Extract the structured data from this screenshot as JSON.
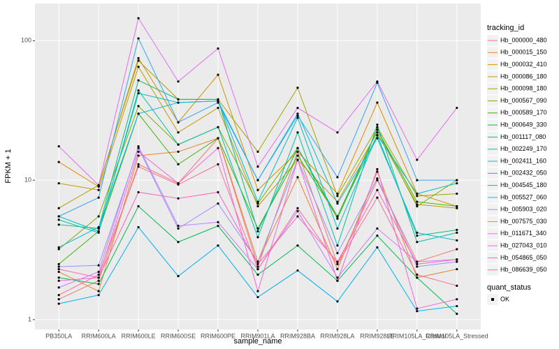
{
  "chart_data": {
    "type": "line",
    "x_label": "sample_name",
    "y_label": "FPKM + 1",
    "y_log": true,
    "grid": true,
    "legend_position": "right",
    "legend_title": "tracking_id",
    "point_legend_title": "quant_status",
    "point_legend_labels": [
      "OK"
    ],
    "point_color": "#000000",
    "ylim": [
      0.85,
      185
    ],
    "yticks": [
      1,
      10,
      100
    ],
    "categories": [
      "PB350LA",
      "RRIM600LA",
      "RRIM600LE",
      "RRIM600SE",
      "RRIM600PE",
      "RRIM901LA",
      "RRIM928BA",
      "RRIM928LA",
      "RRIM928LE",
      "RRIM105LA_Control",
      "RRIM105LA_Stressed"
    ],
    "series": [
      {
        "name": "Hb_000000_480",
        "color": "#F8766D",
        "values": [
          1.4,
          1.9,
          13,
          9.5,
          20,
          2.4,
          16,
          2.5,
          10,
          2.6,
          3.2
        ]
      },
      {
        "name": "Hb_000015_150",
        "color": "#EA8331",
        "values": [
          2.2,
          1.6,
          15,
          16,
          20,
          2.6,
          10.5,
          2.3,
          11.5,
          2.0,
          2.3
        ]
      },
      {
        "name": "Hb_000032_410",
        "color": "#D89000",
        "values": [
          13.5,
          9,
          75,
          26,
          57,
          8.5,
          16,
          8,
          36,
          8,
          6.5
        ]
      },
      {
        "name": "Hb_000086_180",
        "color": "#C09B00",
        "values": [
          9.5,
          8.5,
          65,
          22,
          33,
          6.5,
          14,
          7,
          22,
          6.7,
          6.3
        ]
      },
      {
        "name": "Hb_000098_180",
        "color": "#A3A500",
        "values": [
          6.3,
          9.2,
          72,
          38,
          38,
          16,
          46,
          7.7,
          24,
          7.7,
          8
        ]
      },
      {
        "name": "Hb_000567_090",
        "color": "#7CAE00",
        "values": [
          3.2,
          5.5,
          34,
          18,
          24,
          6.8,
          17,
          5.3,
          23,
          6.5,
          10
        ]
      },
      {
        "name": "Hb_000589_170",
        "color": "#39B600",
        "values": [
          2.5,
          4.3,
          30,
          13,
          20,
          4.5,
          15,
          5.5,
          23,
          7,
          6.5
        ]
      },
      {
        "name": "Hb_000649_330",
        "color": "#00BB4E",
        "values": [
          2.0,
          1.8,
          6.5,
          3.6,
          4.7,
          2.1,
          3.4,
          1.9,
          4.0,
          2.0,
          1.1
        ]
      },
      {
        "name": "Hb_001117_080",
        "color": "#00BF7D",
        "values": [
          4.8,
          4.5,
          52,
          38,
          38,
          4.3,
          17,
          5.5,
          21,
          4.0,
          4.4
        ]
      },
      {
        "name": "Hb_002249_170",
        "color": "#00C1A3",
        "values": [
          5.2,
          4.2,
          44,
          18,
          24,
          3.9,
          22,
          3.4,
          25,
          3.6,
          4.2
        ]
      },
      {
        "name": "Hb_002411_160",
        "color": "#00BFC4",
        "values": [
          5.5,
          4.3,
          42,
          36,
          37,
          7,
          28,
          4.5,
          21,
          8,
          9.5
        ]
      },
      {
        "name": "Hb_002432_050",
        "color": "#00BAE0",
        "values": [
          3.3,
          4.6,
          30,
          36,
          37,
          10,
          30,
          6.8,
          20,
          4.2,
          3.7
        ]
      },
      {
        "name": "Hb_004545_180",
        "color": "#00B0F6",
        "values": [
          1.3,
          1.5,
          4.6,
          2.05,
          3.4,
          1.45,
          2.25,
          1.35,
          3.3,
          1.15,
          1.25
        ]
      },
      {
        "name": "Hb_005527_060",
        "color": "#35A2FF",
        "values": [
          5.5,
          7.5,
          104,
          26,
          36,
          10,
          29,
          10.5,
          50,
          10,
          10
        ]
      },
      {
        "name": "Hb_005903_020",
        "color": "#9590FF",
        "values": [
          2.4,
          2.45,
          17,
          4.5,
          6.8,
          2.6,
          14,
          3.0,
          10.3,
          2.4,
          2.6
        ]
      },
      {
        "name": "Hb_007575_030",
        "color": "#C77CFF",
        "values": [
          1.7,
          2.2,
          17.5,
          4.7,
          5.0,
          2.3,
          6.0,
          2.0,
          4.5,
          2.6,
          2.7
        ]
      },
      {
        "name": "Hb_011671_340",
        "color": "#E76BF3",
        "values": [
          17.5,
          9.2,
          145,
          51,
          88,
          12.5,
          33,
          22,
          51,
          14,
          33
        ]
      },
      {
        "name": "Hb_027043_010",
        "color": "#FA62DB",
        "values": [
          1.9,
          2.0,
          16,
          9.5,
          17,
          1.6,
          14,
          1.9,
          12,
          1.2,
          1.4
        ]
      },
      {
        "name": "Hb_054865_050",
        "color": "#FF62BC",
        "values": [
          2.3,
          2.0,
          8.2,
          7.4,
          8.2,
          2.5,
          5.5,
          2.6,
          8.5,
          2.5,
          2.7
        ]
      },
      {
        "name": "Hb_086639_050",
        "color": "#FF6C91",
        "values": [
          1.5,
          2.1,
          12.5,
          9.3,
          13,
          2.3,
          6.3,
          2.5,
          7.5,
          2.1,
          1.75
        ]
      }
    ]
  }
}
